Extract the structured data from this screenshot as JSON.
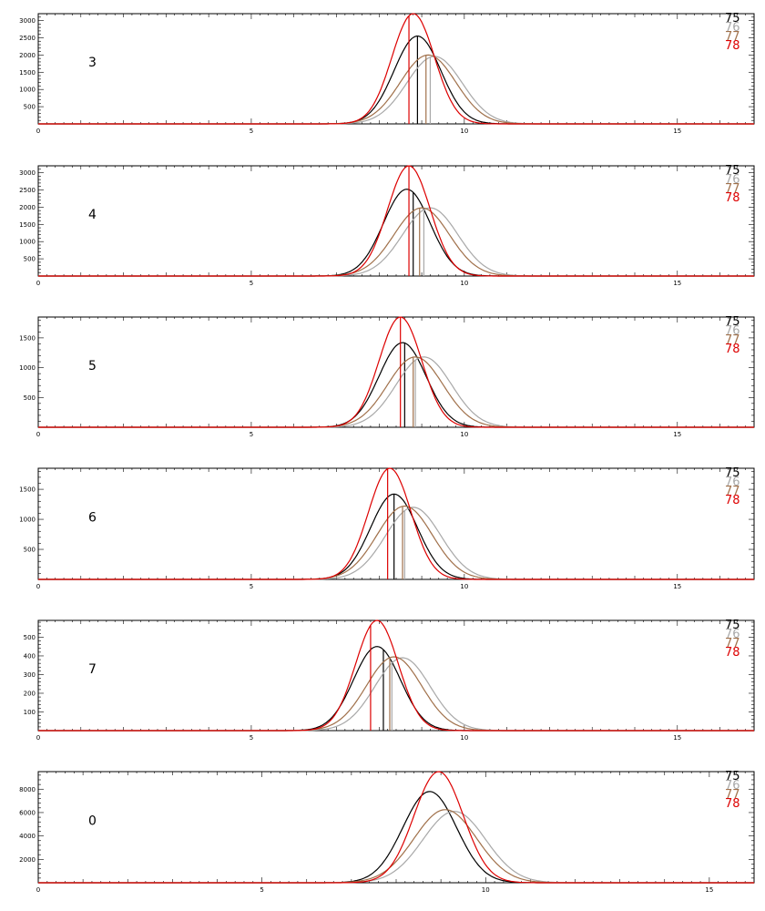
{
  "chart_data": [
    {
      "type": "line",
      "panel_label": "3",
      "xlim": [
        0,
        16.8
      ],
      "ylim": [
        0,
        3200
      ],
      "xticks": [
        0,
        5,
        10,
        15
      ],
      "yticks": [
        500,
        1000,
        1500,
        2000,
        2500,
        3000
      ],
      "legend": [
        "75",
        "76",
        "77",
        "78"
      ],
      "series": [
        {
          "name": "75",
          "color": "#000000",
          "peak_x": 8.9,
          "peak_y": 2550,
          "width": 0.55,
          "marker_x": 8.9
        },
        {
          "name": "76",
          "color": "#a8a8a8",
          "peak_x": 9.3,
          "peak_y": 1960,
          "width": 0.65,
          "marker_x": 9.2
        },
        {
          "name": "77",
          "color": "#a0704a",
          "peak_x": 9.15,
          "peak_y": 2000,
          "width": 0.65,
          "marker_x": 9.1
        },
        {
          "name": "78",
          "color": "#dd0000",
          "peak_x": 8.8,
          "peak_y": 3200,
          "width": 0.5,
          "marker_x": 8.7
        }
      ]
    },
    {
      "type": "line",
      "panel_label": "4",
      "xlim": [
        0,
        16.8
      ],
      "ylim": [
        0,
        3200
      ],
      "xticks": [
        0,
        5,
        10,
        15
      ],
      "yticks": [
        500,
        1000,
        1500,
        2000,
        2500,
        3000
      ],
      "legend": [
        "75",
        "76",
        "77",
        "78"
      ],
      "series": [
        {
          "name": "75",
          "color": "#000000",
          "peak_x": 8.65,
          "peak_y": 2520,
          "width": 0.55,
          "marker_x": 8.8
        },
        {
          "name": "76",
          "color": "#a8a8a8",
          "peak_x": 9.2,
          "peak_y": 1980,
          "width": 0.65,
          "marker_x": 9.05
        },
        {
          "name": "77",
          "color": "#a0704a",
          "peak_x": 9.0,
          "peak_y": 1980,
          "width": 0.65,
          "marker_x": 8.95
        },
        {
          "name": "78",
          "color": "#dd0000",
          "peak_x": 8.7,
          "peak_y": 3200,
          "width": 0.5,
          "marker_x": 8.7
        }
      ]
    },
    {
      "type": "line",
      "panel_label": "5",
      "xlim": [
        0,
        16.8
      ],
      "ylim": [
        0,
        1850
      ],
      "xticks": [
        0,
        5,
        10,
        15
      ],
      "yticks": [
        500,
        1000,
        1500
      ],
      "legend": [
        "75",
        "76",
        "77",
        "78"
      ],
      "series": [
        {
          "name": "75",
          "color": "#000000",
          "peak_x": 8.55,
          "peak_y": 1420,
          "width": 0.55,
          "marker_x": 8.6
        },
        {
          "name": "76",
          "color": "#a8a8a8",
          "peak_x": 9.05,
          "peak_y": 1180,
          "width": 0.65,
          "marker_x": 8.85
        },
        {
          "name": "77",
          "color": "#a0704a",
          "peak_x": 8.85,
          "peak_y": 1180,
          "width": 0.65,
          "marker_x": 8.8
        },
        {
          "name": "78",
          "color": "#dd0000",
          "peak_x": 8.5,
          "peak_y": 1850,
          "width": 0.5,
          "marker_x": 8.5
        }
      ]
    },
    {
      "type": "line",
      "panel_label": "6",
      "xlim": [
        0,
        16.8
      ],
      "ylim": [
        0,
        1850
      ],
      "xticks": [
        0,
        5,
        10,
        15
      ],
      "yticks": [
        500,
        1000,
        1500
      ],
      "legend": [
        "75",
        "76",
        "77",
        "78"
      ],
      "series": [
        {
          "name": "75",
          "color": "#000000",
          "peak_x": 8.35,
          "peak_y": 1420,
          "width": 0.55,
          "marker_x": 8.35
        },
        {
          "name": "76",
          "color": "#a8a8a8",
          "peak_x": 8.8,
          "peak_y": 1200,
          "width": 0.65,
          "marker_x": 8.6
        },
        {
          "name": "77",
          "color": "#a0704a",
          "peak_x": 8.6,
          "peak_y": 1220,
          "width": 0.65,
          "marker_x": 8.55
        },
        {
          "name": "78",
          "color": "#dd0000",
          "peak_x": 8.25,
          "peak_y": 1850,
          "width": 0.5,
          "marker_x": 8.2
        }
      ]
    },
    {
      "type": "line",
      "panel_label": "7",
      "xlim": [
        0,
        16.8
      ],
      "ylim": [
        0,
        590
      ],
      "xticks": [
        0,
        5,
        10,
        15
      ],
      "yticks": [
        100,
        200,
        300,
        400,
        500
      ],
      "legend": [
        "75",
        "76",
        "77",
        "78"
      ],
      "series": [
        {
          "name": "75",
          "color": "#000000",
          "peak_x": 7.95,
          "peak_y": 450,
          "width": 0.55,
          "marker_x": 8.1
        },
        {
          "name": "76",
          "color": "#a8a8a8",
          "peak_x": 8.55,
          "peak_y": 390,
          "width": 0.65,
          "marker_x": 8.3
        },
        {
          "name": "77",
          "color": "#a0704a",
          "peak_x": 8.35,
          "peak_y": 395,
          "width": 0.65,
          "marker_x": 8.25
        },
        {
          "name": "78",
          "color": "#dd0000",
          "peak_x": 7.95,
          "peak_y": 590,
          "width": 0.5,
          "marker_x": 7.8
        }
      ]
    },
    {
      "type": "line",
      "panel_label": "0",
      "xlim": [
        0,
        16
      ],
      "ylim": [
        0,
        9500
      ],
      "xticks": [
        0,
        5,
        10,
        15
      ],
      "yticks": [
        2000,
        4000,
        6000,
        8000
      ],
      "legend": [
        "75",
        "76",
        "77",
        "78"
      ],
      "series": [
        {
          "name": "75",
          "color": "#000000",
          "peak_x": 8.75,
          "peak_y": 7800,
          "width": 0.6,
          "marker_x": null
        },
        {
          "name": "76",
          "color": "#a8a8a8",
          "peak_x": 9.3,
          "peak_y": 6100,
          "width": 0.7,
          "marker_x": null
        },
        {
          "name": "77",
          "color": "#a0704a",
          "peak_x": 9.1,
          "peak_y": 6250,
          "width": 0.7,
          "marker_x": null
        },
        {
          "name": "78",
          "color": "#dd0000",
          "peak_x": 8.95,
          "peak_y": 9500,
          "width": 0.55,
          "marker_x": null
        }
      ]
    }
  ]
}
